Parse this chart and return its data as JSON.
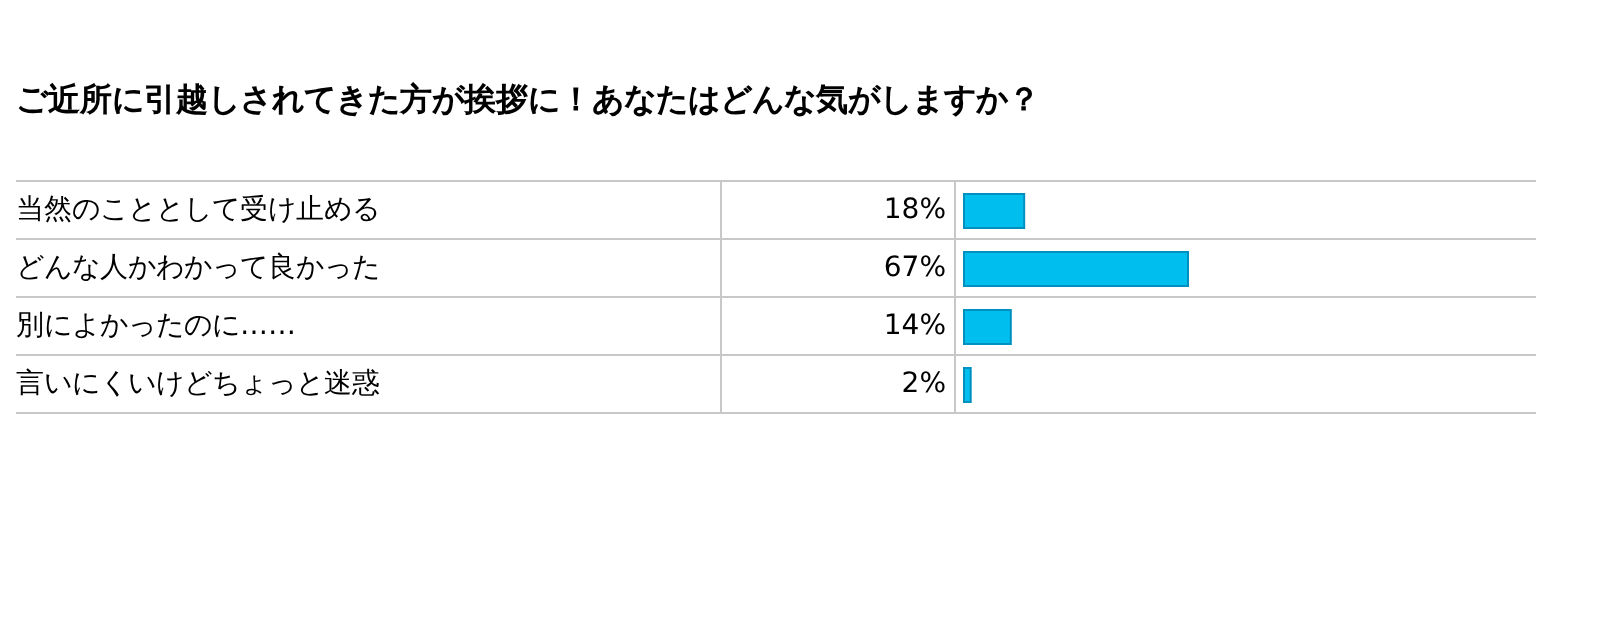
{
  "chart_data": {
    "type": "bar",
    "orientation": "horizontal",
    "title": "ご近所に引越しされてきた方が挨拶に！あなたはどんな気がしますか？",
    "categories": [
      "当然のこととして受け止める",
      "どんな人かわかって良かった",
      "別によかったのに……",
      "言いにくいけどちょっと迷惑"
    ],
    "values": [
      18,
      67,
      14,
      2
    ],
    "value_labels": [
      "18%",
      "67%",
      "14%",
      "2%"
    ],
    "color": "#00bfef"
  }
}
